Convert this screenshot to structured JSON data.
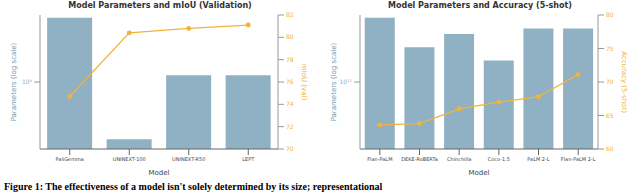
{
  "chart_data": [
    {
      "type": "bar",
      "title": "Model Parameters and mIoU (Validation)",
      "x_label": "Model",
      "y_label": "Parameters (log scale)",
      "y2_label": "mIoU (val)",
      "categories": [
        "PaliGemma",
        "UNINEXT-100",
        "UNINEXT-R50",
        "LEPT"
      ],
      "log": "y",
      "ylim": [
        100000000,
        10000000000
      ],
      "yticks": [
        {
          "value": 1000000000,
          "label": "10⁹"
        }
      ],
      "y2lim": [
        70,
        82
      ],
      "y2ticks": [
        70,
        72,
        74,
        76,
        78,
        80,
        82
      ],
      "grid": false,
      "series": [
        {
          "type": "bar",
          "color": "#8fb1c3",
          "values": [
            9100000000,
            140000000,
            1260000000,
            1260000000
          ]
        },
        {
          "type": "line",
          "axis": "y2",
          "color": "#f2b33d",
          "marker": "o",
          "values": [
            74.7,
            80.4,
            80.8,
            81.1
          ]
        }
      ]
    },
    {
      "type": "bar",
      "title": "Model Parameters and Accuracy (5-shot)",
      "x_label": "Model",
      "y_label": "Parameters (log scale)",
      "y2_label": "Accuracy (5-shot)",
      "categories": [
        "Flan-PaLM",
        "DEKE-RoBERTa",
        "Chinchilla",
        "Coco-1.5",
        "PaLM 2-L",
        "Flan-PaLM 2-L"
      ],
      "log": "y",
      "ylim": [
        10000000000,
        1000000000000
      ],
      "yticks": [
        {
          "value": 100000000000,
          "label": "10¹¹"
        }
      ],
      "y2lim": [
        60,
        80
      ],
      "y2ticks": [
        60,
        65,
        70,
        75,
        80
      ],
      "grid": false,
      "series": [
        {
          "type": "bar",
          "color": "#8fb1c3",
          "values": [
            910000000000,
            330000000000,
            520000000000,
            210000000000,
            630000000000,
            630000000000
          ]
        },
        {
          "type": "line",
          "axis": "y2",
          "color": "#f2b33d",
          "marker": "o",
          "values": [
            63.6,
            63.8,
            66,
            67,
            67.8,
            71.1
          ]
        }
      ]
    }
  ],
  "caption": "Figure 1: The effectiveness of a model isn't solely determined by its size; representational"
}
